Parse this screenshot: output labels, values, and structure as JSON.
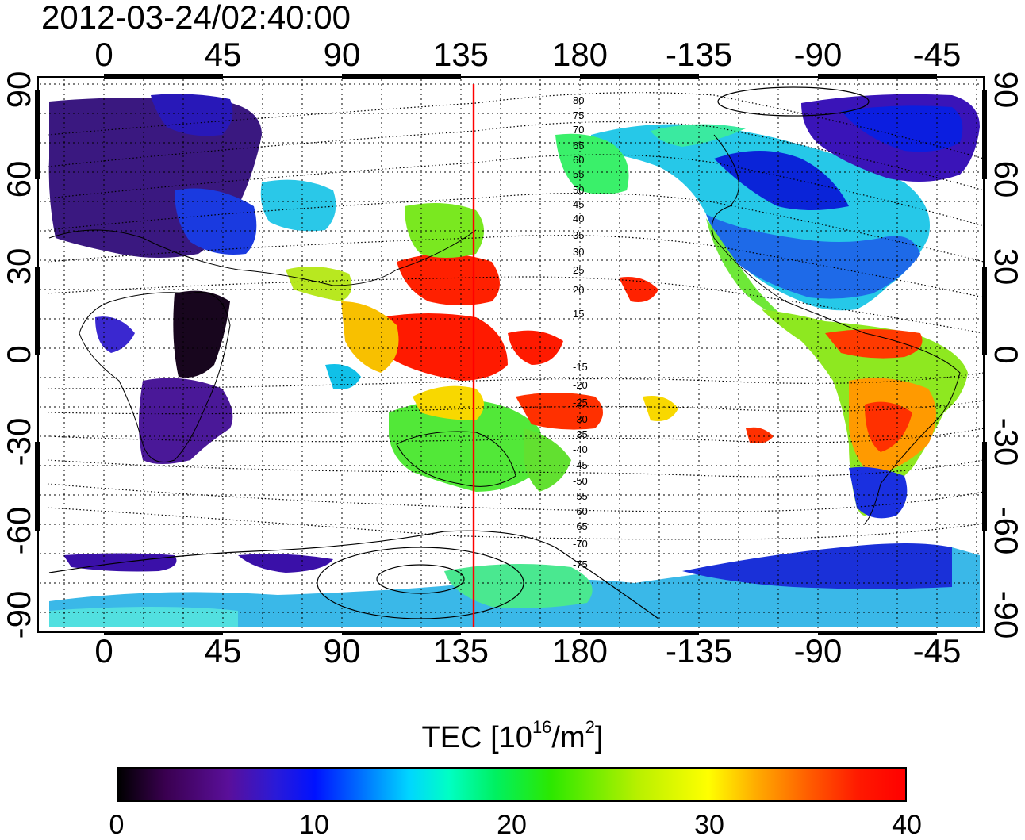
{
  "title": "2012-03-24/02:40:00",
  "longitude_ticks": [
    "0",
    "45",
    "90",
    "135",
    "180",
    "-135",
    "-90",
    "-45"
  ],
  "latitude_ticks": [
    "90",
    "60",
    "30",
    "0",
    "-30",
    "-60",
    "-90"
  ],
  "contour_labels": [
    "80",
    "75",
    "70",
    "65",
    "60",
    "55",
    "50",
    "45",
    "40",
    "35",
    "30",
    "25",
    "20",
    "15",
    "-15",
    "-20",
    "-25",
    "-30",
    "-35",
    "-40",
    "-45",
    "-50",
    "-55",
    "-60",
    "-65",
    "-70",
    "-75"
  ],
  "colorbar": {
    "label_prefix": "TEC  [10",
    "label_exp1": "16",
    "label_mid": "/m",
    "label_exp2": "2",
    "label_suffix": "]",
    "ticks": [
      "0",
      "10",
      "20",
      "30",
      "40"
    ],
    "min": 0,
    "max": 40
  },
  "colors": {
    "meridian_line": "#ff0000",
    "gradient_stops": [
      "#000000",
      "#5a0f9a",
      "#0012ff",
      "#00d6ff",
      "#00f060",
      "#ffff00",
      "#ff0000"
    ]
  },
  "map_meta": {
    "lon_range": [
      -22,
      330
    ],
    "lat_range": [
      -94,
      94
    ],
    "marked_meridian_lon": 140
  }
}
